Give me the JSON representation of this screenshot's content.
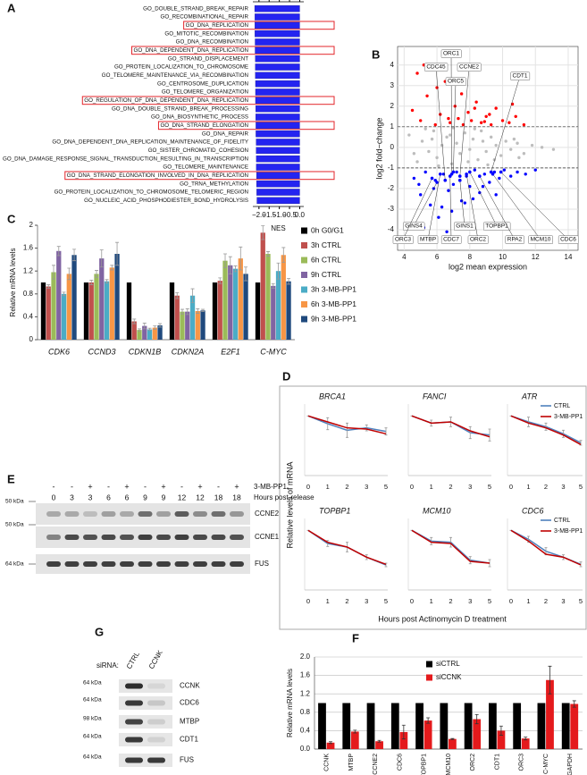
{
  "panel_labels": [
    "A",
    "B",
    "C",
    "D",
    "E",
    "F",
    "G"
  ],
  "chart_data": [
    {
      "type": "hbar",
      "categories": [
        "GO_DOUBLE_STRAND_BREAK_REPAIR",
        "GO_RECOMBINATIONAL_REPAIR",
        "GO_DNA_REPLICATION",
        "GO_MITOTIC_RECOMBINATION",
        "GO_DNA_RECOMBINATION",
        "GO_DNA_DEPENDENT_DNA_REPLICATION",
        "GO_STRAND_DISPLACEMENT",
        "GO_PROTEIN_LOCALIZATION_TO_CHROMOSOME",
        "GO_TELOMERE_MAINTENANCE_VIA_RECOMBINATION",
        "GO_CENTROSOME_DUPLICATION",
        "GO_TELOMERE_ORGANIZATION",
        "GO_REGULATION_OF_DNA_DEPENDENT_DNA_REPLICATION",
        "GO_DNA_DOUBLE_STRAND_BREAK_PROCESSING",
        "GO_DNA_BIOSYNTHETIC_PROCESS",
        "GO_DNA_STRAND_ELONGATION",
        "GO_DNA_REPAIR",
        "GO_DNA_DEPENDENT_DNA_REPLICATION_MAINTENANCE_OF_FIDELITY",
        "GO_SISTER_CHROMATID_COHESION",
        "GO_DNA_DAMAGE_RESPONSE_SIGNAL_TRANSDUCTION_RESULTING_IN_TRANSCRIPTION",
        "GO_TELOMERE_MAINTENANCE",
        "GO_DNA_STRAND_ELONGATION_INVOLVED_IN_DNA_REPLICATION",
        "GO_TRNA_METHYLATION",
        "GO_PROTEIN_LOCALIZATION_TO_CHROMOSOME_TELOMERIC_REGION",
        "GO_NUCLEIC_ACID_PHOSPHODIESTER_BOND_HYDROLYSIS"
      ],
      "values": [
        -2.21,
        -2.2,
        -2.2,
        -2.2,
        -2.19,
        -2.19,
        -2.18,
        -2.18,
        -2.18,
        -2.17,
        -2.17,
        -2.17,
        -2.16,
        -2.16,
        -2.15,
        -2.15,
        -2.14,
        -2.14,
        -2.13,
        -2.13,
        -2.12,
        -2.12,
        -2.11,
        -2.1
      ],
      "boxed": [
        false,
        false,
        true,
        false,
        false,
        true,
        false,
        false,
        false,
        false,
        false,
        true,
        false,
        false,
        true,
        false,
        false,
        false,
        false,
        false,
        true,
        false,
        false,
        false
      ],
      "color": "#2424f0",
      "box_color": "#e3262b",
      "xlim": [
        -2.3,
        0.2
      ],
      "xticks": [
        {
          "value": -2,
          "label": "−2.0"
        },
        {
          "value": -1.5,
          "label": "−1.5"
        },
        {
          "value": -1,
          "label": "−1.0"
        },
        {
          "value": -0.5,
          "label": "−0.5"
        },
        {
          "value": 0,
          "label": "0.0"
        }
      ],
      "xlabel": "NES"
    },
    {
      "type": "scatter",
      "xlabel": "log2 mean expression",
      "ylabel": "log2 fold−change",
      "xlim": [
        3.6,
        14.6
      ],
      "xticks": [
        4,
        6,
        8,
        10,
        12,
        14
      ],
      "ylim": [
        -5,
        4.9
      ],
      "yticks": [
        -4,
        -3,
        -2,
        -1,
        0,
        1,
        2,
        3,
        4
      ],
      "grid": true,
      "hlines": [
        1,
        -1
      ],
      "series": [
        {
          "color": "#bdbdbd",
          "x": [
            4.3,
            4.8,
            5.1,
            5.5,
            5.8,
            6.0,
            6.3,
            6.6,
            6.9,
            7.2,
            7.4,
            7.7,
            8.0,
            8.2,
            8.5,
            8.8,
            9.0,
            9.3,
            9.6,
            9.9,
            10.2,
            10.5,
            10.9,
            11.3,
            11.8,
            12.4,
            13.1,
            5.3,
            6.8,
            7.9,
            8.7,
            9.5,
            10.7,
            6.1,
            7.0,
            8.3,
            9.1,
            4.6,
            5.7,
            11.0
          ],
          "y": [
            0.6,
            -0.7,
            0.3,
            -0.2,
            0.8,
            -0.5,
            0.1,
            0.5,
            -0.8,
            0.2,
            -0.3,
            0.7,
            -0.1,
            0.4,
            -0.6,
            0.3,
            -0.2,
            0.5,
            0.1,
            -0.4,
            0.3,
            -0.1,
            0.2,
            -0.3,
            0.1,
            0.0,
            -0.1,
            0.9,
            0.6,
            -0.7,
            0.8,
            -0.6,
            0.4,
            -0.9,
            0.95,
            0.9,
            -0.85,
            -0.3,
            0.4,
            -0.5
          ]
        },
        {
          "color": "#ff0000",
          "x": [
            4.5,
            5.0,
            5.4,
            5.9,
            6.2,
            6.5,
            6.8,
            7.1,
            7.3,
            7.6,
            7.9,
            8.1,
            8.4,
            8.7,
            9.0,
            9.3,
            9.6,
            10.0,
            10.4,
            10.8,
            11.3,
            5.2,
            6.0,
            6.7,
            7.5,
            8.3,
            9.2,
            4.8,
            10.6,
            8.9
          ],
          "y": [
            1.8,
            1.3,
            2.5,
            1.1,
            1.6,
            3.2,
            1.2,
            2.0,
            1.4,
            1.1,
            1.7,
            1.3,
            2.2,
            1.2,
            1.5,
            1.1,
            1.9,
            1.3,
            1.2,
            1.5,
            1.1,
            4.0,
            2.9,
            1.4,
            2.6,
            1.9,
            1.6,
            3.6,
            2.1,
            1.25
          ]
        },
        {
          "color": "#0000ff",
          "x": [
            4.6,
            5.0,
            5.3,
            5.6,
            5.9,
            6.1,
            6.4,
            6.7,
            7.0,
            7.2,
            7.5,
            7.8,
            8.0,
            8.3,
            8.6,
            8.9,
            9.2,
            9.5,
            9.8,
            10.1,
            10.5,
            10.9,
            11.4,
            12.0,
            5.2,
            5.8,
            6.3,
            6.9,
            7.4,
            8.2,
            8.8,
            9.6,
            4.9,
            6.6,
            7.7
          ],
          "y": [
            -1.5,
            -2.3,
            -1.2,
            -2.8,
            -1.6,
            -3.4,
            -1.3,
            -2.1,
            -1.8,
            -1.2,
            -2.6,
            -1.4,
            -1.9,
            -1.1,
            -2.2,
            -1.3,
            -1.7,
            -1.2,
            -1.5,
            -1.1,
            -1.4,
            -1.2,
            -1.3,
            -1.1,
            -3.9,
            -2.0,
            -2.9,
            -3.1,
            -1.6,
            -2.5,
            -1.9,
            -2.3,
            -1.8,
            -4.1,
            -2.7
          ]
        }
      ],
      "annotations": [
        {
          "text": "ORC1",
          "x": 6.9,
          "y": -1.3
        },
        {
          "text": "CDC45",
          "x": 6.5,
          "y": -1.6
        },
        {
          "text": "CCNE2",
          "x": 7.4,
          "y": -1.4
        },
        {
          "text": "ORC5",
          "x": 7.0,
          "y": -1.2
        },
        {
          "text": "CDT1",
          "x": 9.3,
          "y": -1.2
        },
        {
          "text": "GINS4",
          "x": 6.0,
          "y": -1.7
        },
        {
          "text": "ORC3",
          "x": 5.7,
          "y": -1.5
        },
        {
          "text": "MTBP",
          "x": 6.2,
          "y": -1.3
        },
        {
          "text": "CDC7",
          "x": 6.8,
          "y": -1.4
        },
        {
          "text": "GINS1",
          "x": 7.4,
          "y": -1.6
        },
        {
          "text": "ORC2",
          "x": 7.8,
          "y": -1.3
        },
        {
          "text": "TOPBP1",
          "x": 8.0,
          "y": -1.2
        },
        {
          "text": "RPA2",
          "x": 8.6,
          "y": -1.4
        },
        {
          "text": "MCM10",
          "x": 9.4,
          "y": -1.3
        },
        {
          "text": "CDC6",
          "x": 9.9,
          "y": -1.2
        }
      ]
    },
    {
      "type": "bar",
      "ylabel": "Relative mRNA levels",
      "categories": [
        "CDK6",
        "CCND3",
        "CDKN1B",
        "CDKN2A",
        "E2F1",
        "C-MYC"
      ],
      "italic_categories": true,
      "ylim": [
        0,
        2
      ],
      "yticks": [
        0,
        0.4,
        0.8,
        1.2,
        1.6,
        2
      ],
      "legend": "right",
      "series": [
        {
          "name": "0h G0/G1",
          "color": "#000000",
          "values": [
            1,
            1,
            1,
            1,
            1,
            1
          ]
        },
        {
          "name": "3h CTRL",
          "color": "#c0504d",
          "values": [
            0.93,
            1.0,
            0.32,
            0.77,
            1.03,
            1.87
          ],
          "errors": [
            0.03,
            0.04,
            0.04,
            0.05,
            0.05,
            0.12
          ]
        },
        {
          "name": "6h CTRL",
          "color": "#9bbb59",
          "values": [
            1.18,
            1.15,
            0.17,
            0.49,
            1.38,
            1.5
          ],
          "errors": [
            0.12,
            0.06,
            0.02,
            0.04,
            0.12,
            0.04
          ]
        },
        {
          "name": "9h CTRL",
          "color": "#8064a2",
          "values": [
            1.55,
            1.42,
            0.24,
            0.49,
            1.3,
            0.94
          ],
          "errors": [
            0.08,
            0.15,
            0.05,
            0.05,
            0.15,
            0.04
          ]
        },
        {
          "name": "3h 3-MB-PP1",
          "color": "#4bacc6",
          "values": [
            0.8,
            1.02,
            0.18,
            0.77,
            1.24,
            1.2
          ],
          "errors": [
            0.03,
            0.03,
            0.02,
            0.12,
            0.05,
            0.14
          ]
        },
        {
          "name": "6h 3-MB-PP1",
          "color": "#f79646",
          "values": [
            1.15,
            1.26,
            0.21,
            0.5,
            1.42,
            1.48
          ],
          "errors": [
            0.1,
            0.04,
            0.03,
            0.04,
            0.2,
            0.13
          ]
        },
        {
          "name": "9h 3-MB-PP1",
          "color": "#1f497d",
          "values": [
            1.48,
            1.5,
            0.25,
            0.51,
            1.15,
            1.02
          ],
          "errors": [
            0.1,
            0.2,
            0.03,
            0.02,
            0.12,
            0.05
          ]
        }
      ]
    },
    {
      "type": "line",
      "title": "BRCA1",
      "categories": [
        "0",
        "1",
        "2",
        "3",
        "5"
      ],
      "ylim": [
        0,
        1.2
      ],
      "series": [
        {
          "color": "#4f81bd",
          "values": [
            1,
            0.87,
            0.76,
            0.8,
            0.74
          ],
          "errors": [
            0,
            0.1,
            0.12,
            0.05,
            0.06
          ]
        },
        {
          "color": "#c00000",
          "values": [
            1,
            0.9,
            0.8,
            0.78,
            0.7
          ]
        }
      ]
    },
    {
      "type": "line",
      "title": "FANCI",
      "categories": [
        "0",
        "1",
        "2",
        "3",
        "5"
      ],
      "ylim": [
        0,
        1.2
      ],
      "series": [
        {
          "color": "#4f81bd",
          "values": [
            1,
            0.88,
            0.9,
            0.72,
            0.68
          ],
          "errors": [
            0,
            0.05,
            0.08,
            0.1,
            0.1
          ]
        },
        {
          "color": "#c00000",
          "values": [
            1,
            0.88,
            0.9,
            0.75,
            0.65
          ]
        }
      ]
    },
    {
      "type": "line",
      "title": "ATR",
      "categories": [
        "0",
        "1",
        "2",
        "3",
        "5"
      ],
      "ylim": [
        0,
        1.2
      ],
      "legend": "upper right",
      "series": [
        {
          "name": "CTRL",
          "color": "#4f81bd",
          "values": [
            1,
            0.9,
            0.82,
            0.7,
            0.55
          ],
          "errors": [
            0,
            0.08,
            0.06,
            0.06,
            0.04
          ]
        },
        {
          "name": "3-MB-PP1",
          "color": "#c00000",
          "values": [
            1,
            0.88,
            0.8,
            0.68,
            0.52
          ]
        }
      ]
    },
    {
      "type": "line",
      "title": "TOPBP1",
      "categories": [
        "0",
        "1",
        "2",
        "3",
        "5"
      ],
      "ylim": [
        0,
        1.2
      ],
      "series": [
        {
          "color": "#4f81bd",
          "values": [
            1,
            0.78,
            0.72,
            0.55,
            0.42
          ],
          "errors": [
            0,
            0.05,
            0.08,
            0.04,
            0.03
          ]
        },
        {
          "color": "#c00000",
          "values": [
            1,
            0.8,
            0.72,
            0.55,
            0.43
          ]
        }
      ]
    },
    {
      "type": "line",
      "title": "MCM10",
      "categories": [
        "0",
        "1",
        "2",
        "3",
        "5"
      ],
      "ylim": [
        0,
        1.2
      ],
      "series": [
        {
          "color": "#4f81bd",
          "values": [
            1,
            0.82,
            0.8,
            0.5,
            0.45
          ],
          "errors": [
            0,
            0.06,
            0.08,
            0.06,
            0.06
          ]
        },
        {
          "color": "#c00000",
          "values": [
            1,
            0.8,
            0.78,
            0.48,
            0.45
          ]
        }
      ]
    },
    {
      "type": "line",
      "title": "CDC6",
      "categories": [
        "0",
        "1",
        "2",
        "3",
        "5"
      ],
      "ylim": [
        0,
        1.2
      ],
      "legend": "upper right",
      "series": [
        {
          "name": "CTRL",
          "color": "#4f81bd",
          "values": [
            1,
            0.85,
            0.65,
            0.55,
            0.43
          ],
          "errors": [
            0,
            0.05,
            0.06,
            0.04,
            0.04
          ]
        },
        {
          "name": "3-MB-PP1",
          "color": "#c00000",
          "values": [
            1,
            0.82,
            0.6,
            0.55,
            0.42
          ]
        }
      ]
    },
    {
      "type": "bar",
      "ylabel": "Relative mRNA levels",
      "categories": [
        "CCNK",
        "MTBP",
        "CCNE2",
        "CDC6",
        "TOPBP1",
        "MCM10",
        "ORC2",
        "CDT1",
        "ORC3",
        "C-MYC",
        "GAPDH"
      ],
      "xtick_rotation": 90,
      "ylim": [
        0,
        2
      ],
      "yticks": [
        {
          "value": 0,
          "label": "0.0"
        },
        0.4,
        0.8,
        1.2,
        1.6,
        {
          "value": 2,
          "label": "2.0"
        }
      ],
      "grid": true,
      "legend": "upper center",
      "series": [
        {
          "name": "siCTRL",
          "color": "#000000",
          "values": [
            1,
            1,
            1,
            1,
            1,
            1,
            1,
            1,
            1,
            1,
            1
          ]
        },
        {
          "name": "siCCNK",
          "color": "#e41a1c",
          "values": [
            0.14,
            0.38,
            0.17,
            0.37,
            0.62,
            0.22,
            0.65,
            0.4,
            0.23,
            1.5,
            0.98
          ],
          "errors": [
            0.02,
            0.03,
            0.02,
            0.15,
            0.06,
            0.01,
            0.1,
            0.1,
            0.03,
            0.3,
            0.07
          ]
        }
      ]
    }
  ],
  "panel_d": {
    "xlabel": "Hours post Actinomycin D treatment",
    "ylabel": "Relative levels of mRNA"
  },
  "blot_e": {
    "treatment_label": "3-MB-PP1",
    "treatment": [
      "-",
      "-",
      "+",
      "-",
      "+",
      "-",
      "+",
      "-",
      "+",
      "-",
      "+"
    ],
    "time_label": "Hours post-release",
    "hours": [
      0,
      3,
      3,
      6,
      6,
      9,
      9,
      12,
      12,
      18,
      18
    ],
    "rows": [
      {
        "marker": "50 kDa",
        "protein": "CCNE2"
      },
      {
        "marker": "50 kDa",
        "protein": "CCNE1"
      },
      {
        "marker": "64 kDa",
        "protein": "FUS"
      }
    ]
  },
  "blot_g": {
    "sirna_label": "siRNA:",
    "lanes": [
      "CTRL",
      "CCNK"
    ],
    "rows": [
      {
        "marker": "64 kDa",
        "protein": "CCNK"
      },
      {
        "marker": "64 kDa",
        "protein": "CDC6"
      },
      {
        "marker": "98 kDa",
        "protein": "MTBP"
      },
      {
        "marker": "64 kDa",
        "protein": "CDT1"
      },
      {
        "marker": "64 kDa",
        "protein": "FUS"
      }
    ]
  }
}
